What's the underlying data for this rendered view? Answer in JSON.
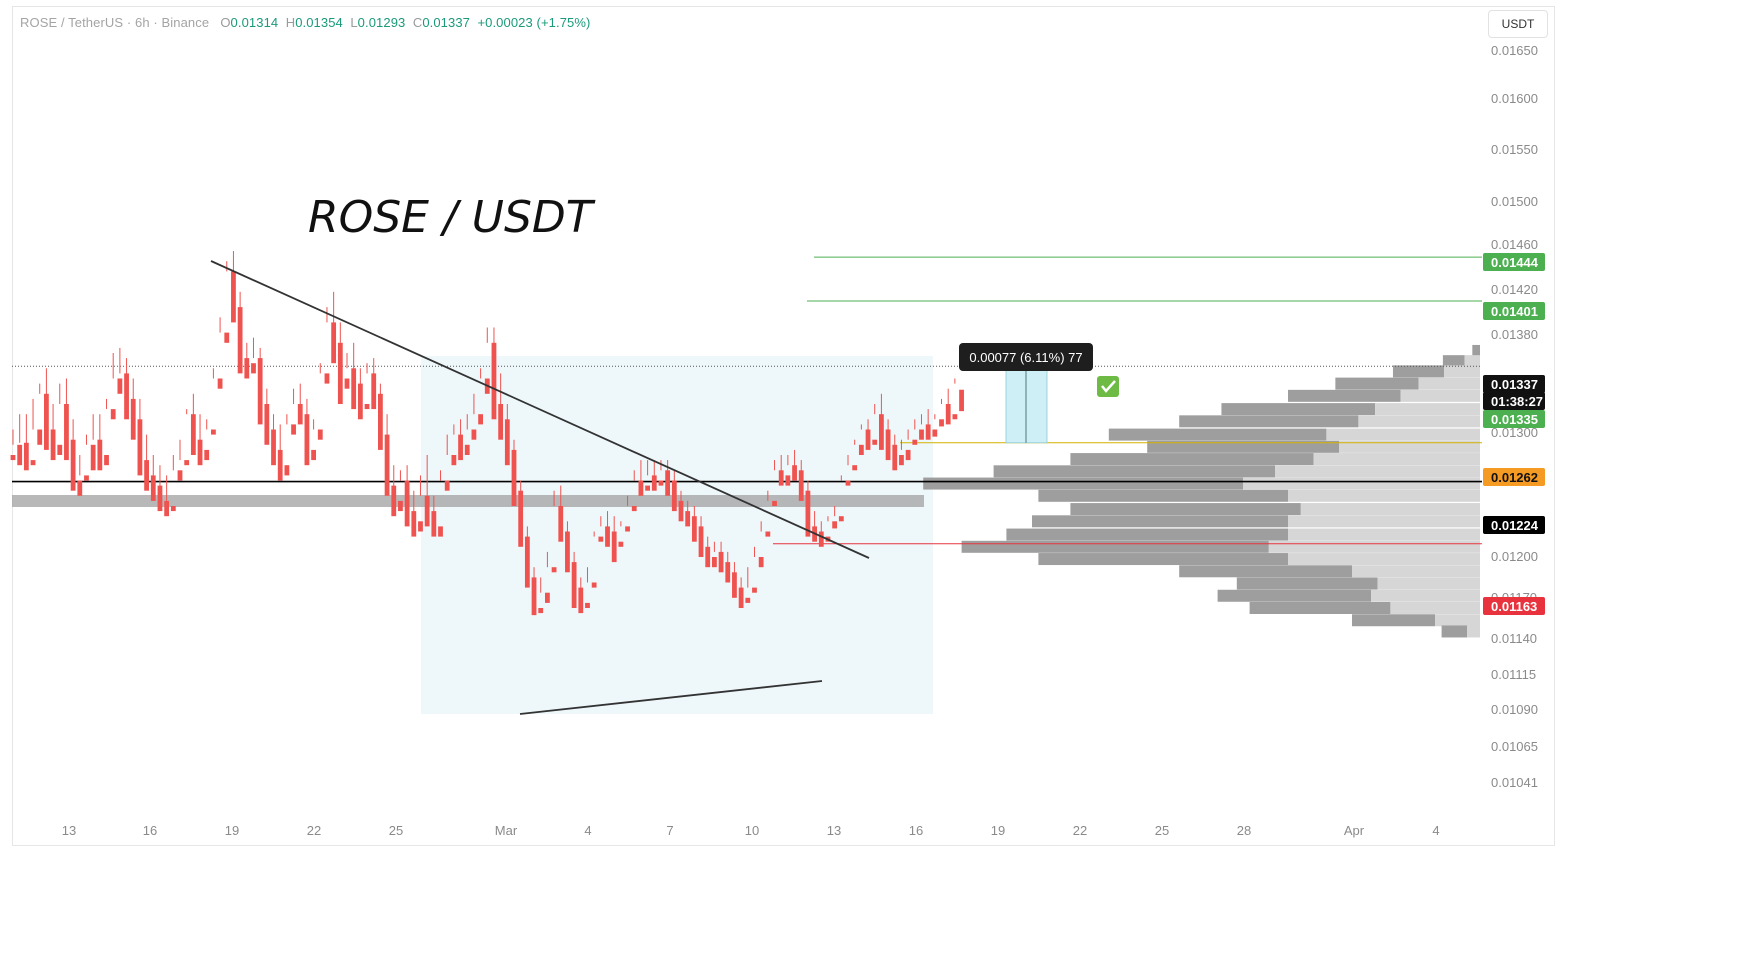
{
  "header": {
    "symbol": "ROSE / TetherUS · 6h · Binance",
    "open_label": "O",
    "open": "0.01314",
    "high_label": "H",
    "high": "0.01354",
    "low_label": "L",
    "low": "0.01293",
    "close_label": "C",
    "close": "0.01337",
    "change": "+0.00023 (+1.75%)"
  },
  "price_scale": {
    "unit": "USDT"
  },
  "colors": {
    "up": "#26a69a",
    "down": "#ef5350",
    "target": "#4caf50",
    "entry": "#f59a23",
    "support": "#000000",
    "stop": "#e8333e",
    "zone": "#eef8fb",
    "measure": "#cdeff5"
  },
  "chart_data": {
    "type": "candlestick",
    "title": "ROSE / USDT",
    "timeframe": "6h",
    "ylim": [
      0.01022,
      0.01662
    ],
    "y_ticks": [
      "0.01650",
      "0.01600",
      "0.01550",
      "0.01500",
      "0.01460",
      "0.01420",
      "0.01380",
      "0.01300",
      "0.01200",
      "0.01170",
      "0.01140",
      "0.01115",
      "0.01090",
      "0.01065",
      "0.01041"
    ],
    "x_ticks": [
      "13",
      "16",
      "19",
      "22",
      "25",
      "Mar",
      "4",
      "7",
      "10",
      "13",
      "16",
      "19",
      "22",
      "25",
      "28",
      "Apr",
      "4"
    ],
    "price_labels": [
      {
        "name": "target-2",
        "value": "0.01444",
        "kind": "target"
      },
      {
        "name": "target-1",
        "value": "0.01401",
        "kind": "target"
      },
      {
        "name": "last-price",
        "value": "0.01337",
        "kind": "last"
      },
      {
        "name": "countdown",
        "value": "01:38:27",
        "kind": "last"
      },
      {
        "name": "bid",
        "value": "0.01335",
        "kind": "target"
      },
      {
        "name": "entry",
        "value": "0.01262",
        "kind": "entry"
      },
      {
        "name": "support",
        "value": "0.01224",
        "kind": "support"
      },
      {
        "name": "stop",
        "value": "0.01163",
        "kind": "stop"
      }
    ],
    "measure_label": "0.00077 (6.11%) 77",
    "candles": [
      [
        0.0125,
        0.01275,
        0.0126,
        0.01245
      ],
      [
        0.0126,
        0.0129,
        0.01262,
        0.0124
      ],
      [
        0.01262,
        0.0129,
        0.01245,
        0.01235
      ],
      [
        0.01245,
        0.01305,
        0.01275,
        0.0124
      ],
      [
        0.01275,
        0.0132,
        0.0131,
        0.0126
      ],
      [
        0.0131,
        0.01335,
        0.01275,
        0.01255
      ],
      [
        0.01275,
        0.013,
        0.0126,
        0.01245
      ],
      [
        0.0126,
        0.0132,
        0.013,
        0.0125
      ],
      [
        0.013,
        0.01325,
        0.01265,
        0.01245
      ],
      [
        0.01265,
        0.01285,
        0.01225,
        0.01215
      ],
      [
        0.01225,
        0.0125,
        0.0123,
        0.0121
      ],
      [
        0.0123,
        0.0127,
        0.0126,
        0.01225
      ],
      [
        0.0126,
        0.0129,
        0.01265,
        0.01235
      ],
      [
        0.01265,
        0.0129,
        0.0125,
        0.01235
      ],
      [
        0.0125,
        0.01305,
        0.01295,
        0.0124
      ],
      [
        0.01295,
        0.0135,
        0.01325,
        0.01285
      ],
      [
        0.01325,
        0.01355,
        0.0133,
        0.0131
      ],
      [
        0.0133,
        0.01345,
        0.01305,
        0.01285
      ],
      [
        0.01305,
        0.01325,
        0.01285,
        0.01265
      ],
      [
        0.01285,
        0.01305,
        0.01245,
        0.0123
      ],
      [
        0.01245,
        0.0127,
        0.0123,
        0.01215
      ],
      [
        0.0123,
        0.0125,
        0.0122,
        0.01205
      ],
      [
        0.0122,
        0.0124,
        0.01205,
        0.01195
      ],
      [
        0.01205,
        0.0123,
        0.012,
        0.0119
      ],
      [
        0.012,
        0.0125,
        0.01235,
        0.01195
      ],
      [
        0.01235,
        0.01265,
        0.01245,
        0.01225
      ],
      [
        0.01245,
        0.01295,
        0.0129,
        0.0124
      ],
      [
        0.0129,
        0.0131,
        0.01265,
        0.0125
      ],
      [
        0.01265,
        0.0129,
        0.01255,
        0.0124
      ],
      [
        0.01255,
        0.01285,
        0.01275,
        0.01245
      ],
      [
        0.01275,
        0.01335,
        0.01325,
        0.0127
      ],
      [
        0.01325,
        0.01385,
        0.0137,
        0.01315
      ],
      [
        0.0137,
        0.0144,
        0.0143,
        0.0136
      ],
      [
        0.0143,
        0.0145,
        0.01395,
        0.0138
      ],
      [
        0.01395,
        0.0141,
        0.01345,
        0.0133
      ],
      [
        0.01345,
        0.0136,
        0.0134,
        0.01325
      ],
      [
        0.0134,
        0.01365,
        0.01345,
        0.0133
      ],
      [
        0.01345,
        0.01355,
        0.013,
        0.0128
      ],
      [
        0.013,
        0.01315,
        0.01275,
        0.0126
      ],
      [
        0.01275,
        0.0129,
        0.01255,
        0.0124
      ],
      [
        0.01255,
        0.0128,
        0.0124,
        0.01225
      ],
      [
        0.0124,
        0.0129,
        0.0128,
        0.0123
      ],
      [
        0.0128,
        0.01315,
        0.013,
        0.0127
      ],
      [
        0.013,
        0.0132,
        0.0129,
        0.0128
      ],
      [
        0.0129,
        0.01305,
        0.01255,
        0.0124
      ],
      [
        0.01255,
        0.01285,
        0.01275,
        0.01245
      ],
      [
        0.01275,
        0.0134,
        0.0133,
        0.01265
      ],
      [
        0.0133,
        0.01395,
        0.0138,
        0.0132
      ],
      [
        0.0138,
        0.0141,
        0.0136,
        0.0134
      ],
      [
        0.0136,
        0.0138,
        0.01325,
        0.013
      ],
      [
        0.01325,
        0.0135,
        0.01335,
        0.01315
      ],
      [
        0.01335,
        0.0136,
        0.0132,
        0.01295
      ],
      [
        0.0132,
        0.01335,
        0.013,
        0.01285
      ],
      [
        0.013,
        0.0134,
        0.0133,
        0.01295
      ],
      [
        0.0133,
        0.01345,
        0.0131,
        0.01295
      ],
      [
        0.0131,
        0.0132,
        0.0127,
        0.01255
      ],
      [
        0.0127,
        0.0129,
        0.0122,
        0.0121
      ],
      [
        0.0122,
        0.0124,
        0.01205,
        0.0119
      ],
      [
        0.01205,
        0.01235,
        0.01225,
        0.01195
      ],
      [
        0.01225,
        0.0124,
        0.01195,
        0.0118
      ],
      [
        0.01195,
        0.01215,
        0.01185,
        0.0117
      ],
      [
        0.01185,
        0.0123,
        0.0121,
        0.01175
      ],
      [
        0.0121,
        0.0125,
        0.01195,
        0.0118
      ],
      [
        0.01195,
        0.0121,
        0.0118,
        0.0117
      ],
      [
        0.0118,
        0.01235,
        0.01225,
        0.0117
      ],
      [
        0.01225,
        0.0127,
        0.0125,
        0.01215
      ],
      [
        0.0125,
        0.0128,
        0.0127,
        0.0124
      ],
      [
        0.0127,
        0.01285,
        0.0126,
        0.01245
      ],
      [
        0.0126,
        0.0129,
        0.01275,
        0.0125
      ],
      [
        0.01275,
        0.0131,
        0.0129,
        0.01265
      ],
      [
        0.0129,
        0.01335,
        0.01325,
        0.0128
      ],
      [
        0.01325,
        0.01375,
        0.0136,
        0.0131
      ],
      [
        0.0136,
        0.01375,
        0.013,
        0.01285
      ],
      [
        0.013,
        0.0133,
        0.01285,
        0.01265
      ],
      [
        0.01285,
        0.013,
        0.01255,
        0.0124
      ],
      [
        0.01255,
        0.01265,
        0.01215,
        0.012
      ],
      [
        0.01215,
        0.01225,
        0.0117,
        0.0116
      ],
      [
        0.0117,
        0.0118,
        0.0113,
        0.0112
      ],
      [
        0.0113,
        0.0114,
        0.011,
        0.01093
      ],
      [
        0.011,
        0.0113,
        0.01115,
        0.01095
      ],
      [
        0.01115,
        0.01155,
        0.0114,
        0.01105
      ],
      [
        0.0114,
        0.01215,
        0.012,
        0.01135
      ],
      [
        0.012,
        0.0122,
        0.01175,
        0.01165
      ],
      [
        0.01175,
        0.01185,
        0.01145,
        0.01135
      ],
      [
        0.01145,
        0.01155,
        0.0112,
        0.011
      ],
      [
        0.0112,
        0.0113,
        0.01105,
        0.01095
      ],
      [
        0.01105,
        0.0114,
        0.01125,
        0.011
      ],
      [
        0.01125,
        0.01175,
        0.0117,
        0.0112
      ],
      [
        0.0117,
        0.0119,
        0.0118,
        0.01165
      ],
      [
        0.0118,
        0.01195,
        0.01175,
        0.0116
      ],
      [
        0.01175,
        0.0119,
        0.01165,
        0.01145
      ],
      [
        0.01165,
        0.01185,
        0.0118,
        0.0116
      ],
      [
        0.0118,
        0.0121,
        0.012,
        0.01175
      ],
      [
        0.012,
        0.01235,
        0.01225,
        0.01195
      ],
      [
        0.01225,
        0.01245,
        0.0122,
        0.0121
      ],
      [
        0.0122,
        0.01245,
        0.0123,
        0.01215
      ],
      [
        0.0123,
        0.01245,
        0.01225,
        0.01215
      ],
      [
        0.01225,
        0.01245,
        0.01235,
        0.0122
      ],
      [
        0.01235,
        0.01245,
        0.01225,
        0.0121
      ],
      [
        0.01225,
        0.01235,
        0.01205,
        0.01195
      ],
      [
        0.01205,
        0.01215,
        0.01195,
        0.01185
      ],
      [
        0.01195,
        0.01205,
        0.0119,
        0.0118
      ],
      [
        0.0119,
        0.012,
        0.0118,
        0.01165
      ],
      [
        0.0118,
        0.0119,
        0.0116,
        0.0115
      ],
      [
        0.0116,
        0.0117,
        0.0115,
        0.0114
      ],
      [
        0.0115,
        0.01165,
        0.01155,
        0.0114
      ],
      [
        0.01155,
        0.01165,
        0.01145,
        0.01135
      ],
      [
        0.01145,
        0.01155,
        0.01135,
        0.01125
      ],
      [
        0.01135,
        0.01145,
        0.0112,
        0.0111
      ],
      [
        0.0112,
        0.0113,
        0.0111,
        0.011
      ],
      [
        0.0111,
        0.0114,
        0.0112,
        0.01105
      ],
      [
        0.0112,
        0.0116,
        0.0115,
        0.01115
      ],
      [
        0.0115,
        0.01185,
        0.01175,
        0.0114
      ],
      [
        0.01175,
        0.01215,
        0.01205,
        0.0117
      ],
      [
        0.01205,
        0.01245,
        0.01235,
        0.012
      ],
      [
        0.01235,
        0.0125,
        0.0123,
        0.0122
      ],
      [
        0.0123,
        0.0125,
        0.0124,
        0.0122
      ],
      [
        0.0124,
        0.01255,
        0.01235,
        0.01225
      ],
      [
        0.01235,
        0.01245,
        0.01215,
        0.01205
      ],
      [
        0.01215,
        0.01225,
        0.0118,
        0.0117
      ],
      [
        0.0118,
        0.01195,
        0.01175,
        0.01165
      ],
      [
        0.01175,
        0.01185,
        0.0117,
        0.0116
      ],
      [
        0.0117,
        0.0119,
        0.01185,
        0.01165
      ],
      [
        0.01185,
        0.012,
        0.0119,
        0.01178
      ],
      [
        0.0119,
        0.0123,
        0.01225,
        0.01185
      ],
      [
        0.01225,
        0.0125,
        0.0124,
        0.0122
      ],
      [
        0.0124,
        0.01265,
        0.0126,
        0.01235
      ],
      [
        0.0126,
        0.0128,
        0.01275,
        0.0125
      ],
      [
        0.01275,
        0.01285,
        0.01265,
        0.01255
      ],
      [
        0.01265,
        0.013,
        0.0129,
        0.0126
      ],
      [
        0.0129,
        0.0131,
        0.01275,
        0.01255
      ],
      [
        0.01275,
        0.01285,
        0.0126,
        0.01245
      ],
      [
        0.0126,
        0.0127,
        0.0125,
        0.01235
      ],
      [
        0.0125,
        0.01265,
        0.01255,
        0.0124
      ],
      [
        0.01255,
        0.01275,
        0.01265,
        0.01245
      ],
      [
        0.01265,
        0.01285,
        0.01275,
        0.0126
      ],
      [
        0.01275,
        0.0129,
        0.0128,
        0.01265
      ],
      [
        0.0128,
        0.01295,
        0.01275,
        0.01265
      ],
      [
        0.01275,
        0.0129,
        0.01285,
        0.01268
      ],
      [
        0.01285,
        0.01305,
        0.013,
        0.01278
      ],
      [
        0.013,
        0.01315,
        0.0129,
        0.0128
      ],
      [
        0.0129,
        0.01325,
        0.0132,
        0.01285
      ],
      [
        0.01314,
        0.01354,
        0.01337,
        0.01293
      ]
    ],
    "volume_profile": [
      [
        0.01352,
        0,
        6
      ],
      [
        0.01342,
        12,
        17
      ],
      [
        0.01332,
        28,
        40
      ],
      [
        0.0132,
        48,
        65
      ],
      [
        0.01308,
        62,
        88
      ],
      [
        0.01295,
        82,
        120
      ],
      [
        0.01283,
        95,
        140
      ],
      [
        0.0127,
        120,
        170
      ],
      [
        0.01258,
        110,
        150
      ],
      [
        0.01246,
        130,
        190
      ],
      [
        0.01234,
        160,
        220
      ],
      [
        0.01222,
        185,
        250
      ],
      [
        0.0121,
        150,
        195
      ],
      [
        0.01197,
        140,
        180
      ],
      [
        0.01185,
        150,
        200
      ],
      [
        0.01172,
        150,
        220
      ],
      [
        0.0116,
        165,
        240
      ],
      [
        0.01148,
        150,
        195
      ],
      [
        0.01136,
        100,
        135
      ],
      [
        0.01124,
        80,
        110
      ],
      [
        0.01112,
        85,
        120
      ],
      [
        0.011,
        70,
        110
      ],
      [
        0.01088,
        35,
        65
      ],
      [
        0.01077,
        10,
        20
      ]
    ]
  }
}
